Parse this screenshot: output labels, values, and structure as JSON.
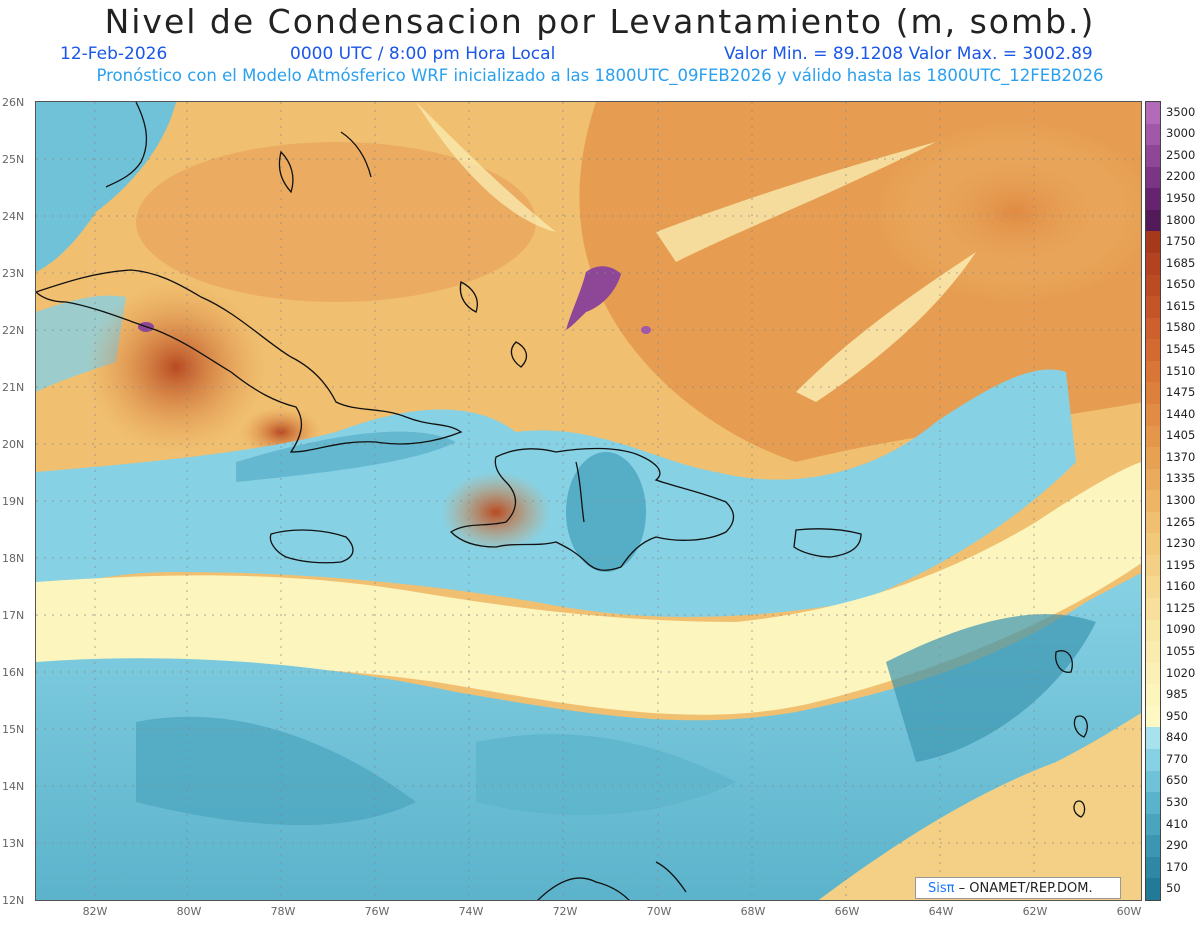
{
  "title": "Nivel de Condensacion por Levantamiento (m, somb.)",
  "date": "12-Feb-2026",
  "time": "0000 UTC / 8:00 pm Hora Local",
  "value_range": "Valor Min. = 89.1208   Valor Max. = 3002.89",
  "subtitle": "Pronóstico con el Modelo Atmósferico WRF inicializado a las 1800UTC_09FEB2026 y válido hasta las  1800UTC_12FEB2026",
  "lat_labels": [
    "26N",
    "25N",
    "24N",
    "23N",
    "22N",
    "21N",
    "20N",
    "19N",
    "18N",
    "17N",
    "16N",
    "15N",
    "14N",
    "13N",
    "12N"
  ],
  "lon_labels": [
    "82W",
    "80W",
    "78W",
    "76W",
    "74W",
    "72W",
    "70W",
    "68W",
    "66W",
    "64W",
    "62W",
    "60W"
  ],
  "colorbar": {
    "labels": [
      "3500",
      "3000",
      "2500",
      "2200",
      "1950",
      "1800",
      "1750",
      "1685",
      "1650",
      "1615",
      "1580",
      "1545",
      "1510",
      "1475",
      "1440",
      "1405",
      "1370",
      "1335",
      "1300",
      "1265",
      "1230",
      "1195",
      "1160",
      "1125",
      "1090",
      "1055",
      "1020",
      "985",
      "950",
      "840",
      "770",
      "650",
      "530",
      "410",
      "290",
      "170",
      "50"
    ],
    "colors": [
      "#b36ab9",
      "#a258a9",
      "#8e4697",
      "#7a3584",
      "#66236f",
      "#521a58",
      "#a7391b",
      "#b24220",
      "#bc4b24",
      "#c55528",
      "#cd602d",
      "#d36a32",
      "#d87537",
      "#dd803c",
      "#e18b44",
      "#e4964b",
      "#e7a153",
      "#eaab5c",
      "#edb565",
      "#f0bf70",
      "#f2c87b",
      "#f4d086",
      "#f6d891",
      "#f8e09c",
      "#f9e7a6",
      "#faecaf",
      "#fbf1b7",
      "#fcf5be",
      "#fdf8c4",
      "#a8e2ef",
      "#87d1e4",
      "#6fc2d8",
      "#5bb3cb",
      "#4aa4be",
      "#3c95b1",
      "#2f87a4",
      "#237a97"
    ]
  },
  "credit": {
    "brand": "Sisπ",
    "text": "– ONAMET/REP.DOM."
  },
  "colors": {
    "title_blue": "#1a56e8",
    "subtitle_blue": "#2aa0ef"
  }
}
